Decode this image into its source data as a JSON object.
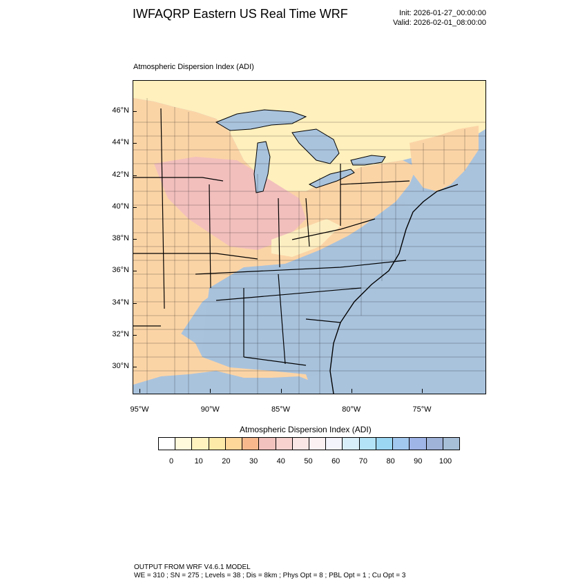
{
  "header": {
    "title": "IWFAQRP Eastern US Real Time WRF",
    "init": "Init: 2026-01-27_00:00:00",
    "valid": "Valid: 2026-02-01_08:00:00"
  },
  "plot": {
    "label": "Atmospheric Dispersion Index   (ADI)"
  },
  "axes": {
    "lat_labels": [
      "46°N",
      "44°N",
      "42°N",
      "40°N",
      "38°N",
      "36°N",
      "34°N",
      "32°N",
      "30°N"
    ],
    "lon_labels": [
      "95°W",
      "90°W",
      "85°W",
      "80°W",
      "75°W"
    ]
  },
  "colorbar": {
    "title": "Atmospheric Dispersion Index  (ADI)",
    "labels": [
      "0",
      "10",
      "20",
      "30",
      "40",
      "50",
      "60",
      "70",
      "80",
      "90",
      "100"
    ],
    "colors": [
      "#ffffff",
      "#fffadc",
      "#fff4c0",
      "#fde9a8",
      "#fdd69a",
      "#f7b98c",
      "#f2c2be",
      "#f7d2cf",
      "#fae6e4",
      "#fbf0f2",
      "#f3f4fc",
      "#d8eef8",
      "#b3e3f6",
      "#9bd6f3",
      "#a3c8ef",
      "#9fb4e7",
      "#9fb2d8",
      "#a7bfd7"
    ]
  },
  "map": {
    "colors": {
      "ocean": "#a9c3dd",
      "canada": "#fff0bd",
      "lake": "#a9c3dd",
      "blue_region": "#a8c2dc",
      "orange_region": "#fbd4a6",
      "pink_region": "#f2bfbd",
      "yellow_region": "#fdeec1"
    }
  },
  "footer": {
    "line1": "OUTPUT FROM WRF V4.6.1 MODEL",
    "line2": "WE = 310 ; SN = 275 ; Levels = 38 ; Dis = 8km ; Phys Opt = 8 ; PBL Opt = 1 ; Cu Opt = 3"
  }
}
